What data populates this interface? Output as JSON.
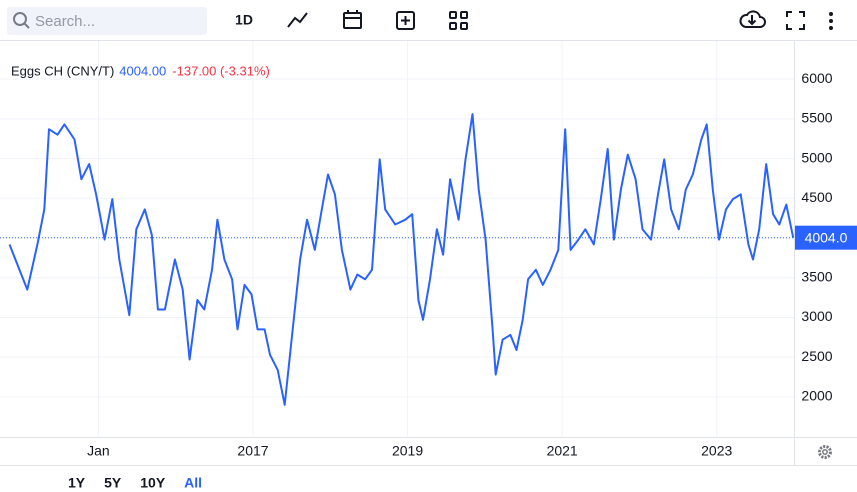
{
  "toolbar": {
    "search_placeholder": "Search...",
    "interval": "1D"
  },
  "ranges": [
    "1Y",
    "5Y",
    "10Y",
    "All"
  ],
  "chart_data": {
    "type": "line",
    "series": [
      {
        "name": "Eggs CH (CNY/T)",
        "color": "#2962ff",
        "values": [
          3918,
          3350,
          3920,
          4360,
          5370,
          5300,
          5430,
          5240,
          4740,
          4930,
          4550,
          3980,
          4490,
          3730,
          3030,
          4110,
          4360,
          4040,
          3100,
          3100,
          3730,
          3350,
          2470,
          3220,
          3100,
          3600,
          4230,
          3730,
          3480,
          2850,
          3410,
          3290,
          2850,
          2850,
          2530,
          2340,
          1900,
          2720,
          3730,
          4230,
          3850,
          4360,
          4800,
          4550,
          3850,
          3350,
          3540,
          3480,
          3600,
          4990,
          4360,
          4170,
          4230,
          4300,
          3220,
          2970,
          3480,
          4110,
          3790,
          4740,
          4230,
          4990,
          5560,
          4610,
          3980,
          2850,
          2280,
          2720,
          2780,
          2590,
          2970,
          3480,
          3600,
          3410,
          3600,
          3850,
          5370,
          3850,
          3980,
          4110,
          3920,
          4490,
          5120,
          3980,
          4610,
          5050,
          4740,
          4110,
          3980,
          4550,
          4990,
          4360,
          4110,
          4610,
          4800,
          5240,
          5430,
          4610,
          3980,
          4360,
          4490,
          4550,
          3920,
          3730,
          4110,
          4930,
          4300,
          4170,
          4420,
          4004
        ]
      }
    ],
    "x": [
      2013.85,
      2014.08,
      2014.21,
      2014.3,
      2014.36,
      2014.47,
      2014.56,
      2014.69,
      2014.78,
      2014.88,
      2014.97,
      2015.08,
      2015.18,
      2015.27,
      2015.4,
      2015.49,
      2015.6,
      2015.69,
      2015.77,
      2015.86,
      2015.99,
      2016.09,
      2016.18,
      2016.28,
      2016.37,
      2016.47,
      2016.54,
      2016.63,
      2016.73,
      2016.8,
      2016.89,
      2016.98,
      2017.06,
      2017.15,
      2017.22,
      2017.32,
      2017.41,
      2017.5,
      2017.61,
      2017.7,
      2017.8,
      2017.89,
      2017.97,
      2018.06,
      2018.15,
      2018.26,
      2018.35,
      2018.45,
      2018.54,
      2018.64,
      2018.71,
      2018.84,
      2018.97,
      2019.06,
      2019.14,
      2019.2,
      2019.29,
      2019.38,
      2019.46,
      2019.55,
      2019.66,
      2019.75,
      2019.84,
      2019.92,
      2020.01,
      2020.1,
      2020.14,
      2020.23,
      2020.33,
      2020.41,
      2020.49,
      2020.56,
      2020.66,
      2020.75,
      2020.85,
      2020.95,
      2021.04,
      2021.11,
      2021.21,
      2021.3,
      2021.41,
      2021.5,
      2021.59,
      2021.67,
      2021.76,
      2021.85,
      2021.95,
      2022.04,
      2022.15,
      2022.24,
      2022.32,
      2022.41,
      2022.51,
      2022.6,
      2022.69,
      2022.8,
      2022.87,
      2022.95,
      2023.03,
      2023.12,
      2023.21,
      2023.31,
      2023.41,
      2023.47,
      2023.55,
      2023.64,
      2023.73,
      2023.81,
      2023.9,
      2023.99
    ],
    "xlim": [
      2013.83,
      2024.0
    ],
    "xticks": [
      {
        "value": 2015,
        "label": "Jan"
      },
      2017,
      2019,
      2021,
      2023
    ],
    "ylim": [
      1495,
      6480
    ],
    "yticks": [
      2000,
      2500,
      3000,
      3500,
      4000,
      4500,
      5000,
      5500,
      6000
    ],
    "grid": true,
    "legend_price": "4004.00",
    "legend_change": "-137.00 (-3.31%)",
    "price_label": "4004.0"
  }
}
